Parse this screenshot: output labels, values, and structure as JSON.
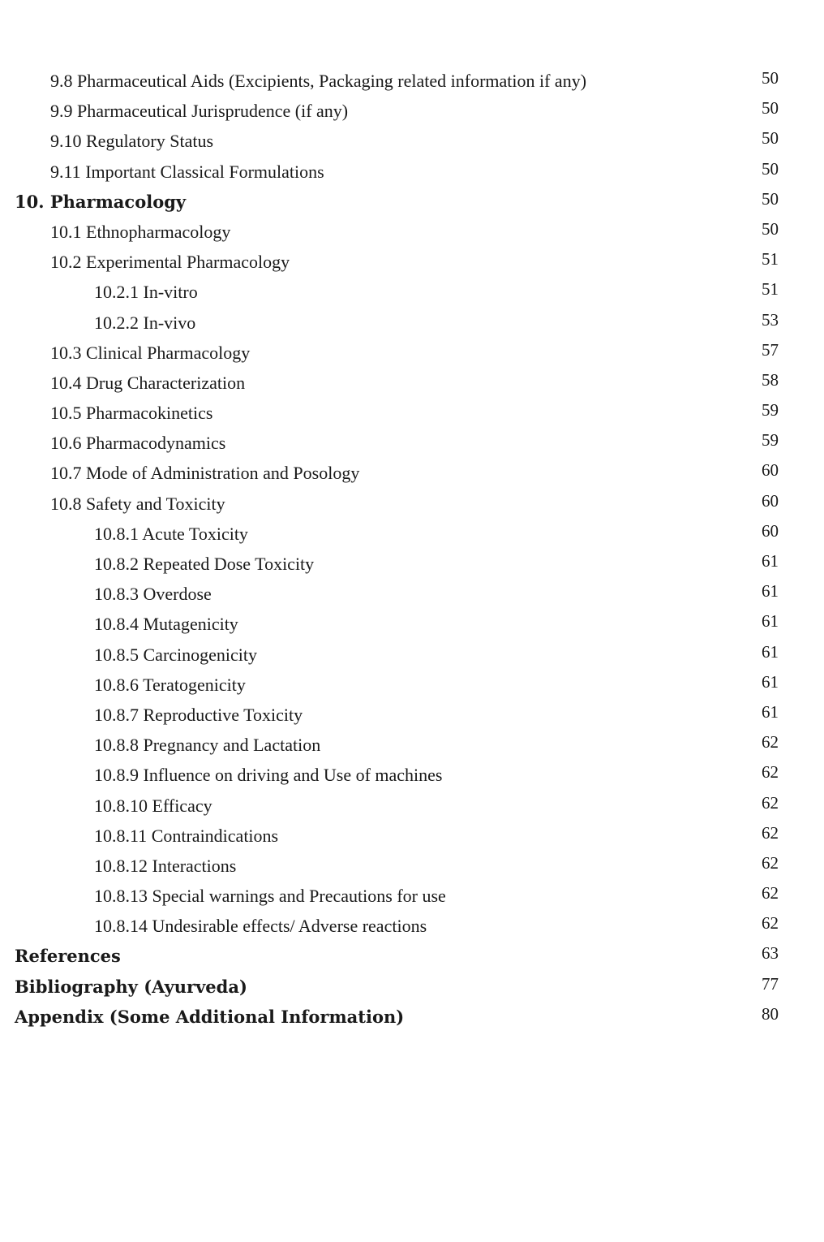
{
  "toc": [
    {
      "number": "9.8",
      "title": "Pharmaceutical Aids (Excipients, Packaging related information if any)",
      "page": "50",
      "level": 1
    },
    {
      "number": "9.9",
      "title": "Pharmaceutical Jurisprudence (if any)",
      "page": "50",
      "level": 1
    },
    {
      "number": "9.10",
      "title": "Regulatory Status",
      "page": "50",
      "level": 1
    },
    {
      "number": "9.11",
      "title": "Important Classical Formulations",
      "page": "50",
      "level": 1
    },
    {
      "number": "10.",
      "title": "Pharmacology",
      "page": "50",
      "level": 0
    },
    {
      "number": "10.1",
      "title": "Ethnopharmacology",
      "page": "50",
      "level": 1
    },
    {
      "number": "10.2",
      "title": "Experimental Pharmacology",
      "page": "51",
      "level": 1
    },
    {
      "number": "10.2.1",
      "title": "In-vitro",
      "page": "51",
      "level": 2
    },
    {
      "number": "10.2.2",
      "title": "In-vivo",
      "page": "53",
      "level": 2
    },
    {
      "number": "10.3",
      "title": "Clinical Pharmacology",
      "page": "57",
      "level": 1
    },
    {
      "number": "10.4",
      "title": "Drug Characterization",
      "page": "58",
      "level": 1
    },
    {
      "number": "10.5",
      "title": "Pharmacokinetics",
      "page": "59",
      "level": 1
    },
    {
      "number": "10.6",
      "title": "Pharmacodynamics",
      "page": "59",
      "level": 1
    },
    {
      "number": "10.7",
      "title": "Mode of Administration and Posology",
      "page": "60",
      "level": 1
    },
    {
      "number": "10.8",
      "title": "Safety and Toxicity",
      "page": "60",
      "level": 1
    },
    {
      "number": "10.8.1",
      "title": "Acute Toxicity",
      "page": "60",
      "level": 2
    },
    {
      "number": "10.8.2",
      "title": "Repeated Dose Toxicity",
      "page": "61",
      "level": 2
    },
    {
      "number": "10.8.3",
      "title": "Overdose",
      "page": "61",
      "level": 2
    },
    {
      "number": "10.8.4",
      "title": "Mutagenicity",
      "page": "61",
      "level": 2
    },
    {
      "number": "10.8.5",
      "title": "Carcinogenicity",
      "page": "61",
      "level": 2
    },
    {
      "number": "10.8.6",
      "title": "Teratogenicity",
      "page": "61",
      "level": 2
    },
    {
      "number": "10.8.7",
      "title": "Reproductive Toxicity",
      "page": "61",
      "level": 2
    },
    {
      "number": "10.8.8",
      "title": "Pregnancy and Lactation",
      "page": "62",
      "level": 2
    },
    {
      "number": "10.8.9",
      "title": "Influence on driving and Use of machines",
      "page": "62",
      "level": 2
    },
    {
      "number": "10.8.10",
      "title": "Efficacy",
      "page": "62",
      "level": 2
    },
    {
      "number": "10.8.11",
      "title": "Contraindications",
      "page": "62",
      "level": 2
    },
    {
      "number": "10.8.12",
      "title": "Interactions",
      "page": "62",
      "level": 2
    },
    {
      "number": "10.8.13",
      "title": "Special warnings and Precautions for use",
      "page": "62",
      "level": 2
    },
    {
      "number": "10.8.14",
      "title": "Undesirable effects/ Adverse reactions",
      "page": "62",
      "level": 2
    },
    {
      "number": "",
      "title": "References",
      "page": "63",
      "level": 0
    },
    {
      "number": "",
      "title": "Bibliography (Ayurveda)",
      "page": "77",
      "level": 0
    },
    {
      "number": "",
      "title": "Appendix (Some Additional Information)",
      "page": "80",
      "level": 0
    }
  ]
}
